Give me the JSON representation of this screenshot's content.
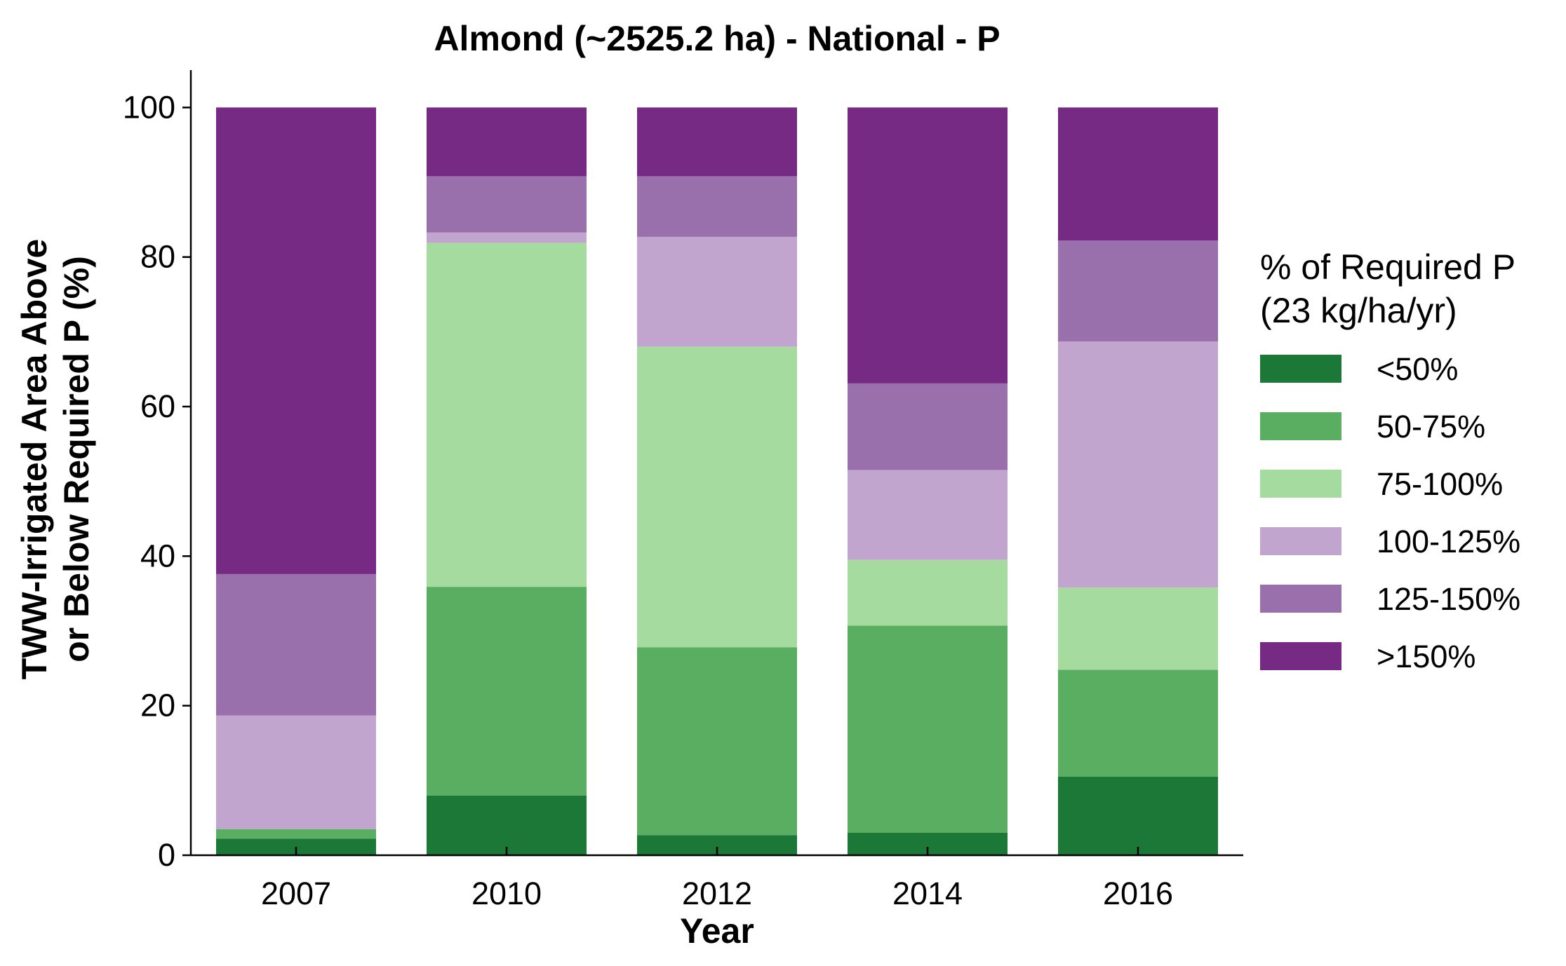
{
  "chart_data": {
    "type": "bar",
    "stacked": true,
    "title": "Almond (~2525.2 ha) - National - P",
    "xlabel": "Year",
    "ylabel_lines": [
      "TWW-Irrigated Area Above",
      "or Below Required P (%)"
    ],
    "ylim": [
      0,
      105
    ],
    "yticks": [
      0,
      20,
      40,
      60,
      80,
      100
    ],
    "categories": [
      "2007",
      "2010",
      "2012",
      "2014",
      "2016"
    ],
    "legend_title_lines": [
      "% of Required P",
      "(23 kg/ha/yr)"
    ],
    "legend_position": "right",
    "grid": false,
    "series": [
      {
        "name": "<50%",
        "color": "#1b7837",
        "values": [
          2.2,
          8.0,
          2.7,
          3.0,
          10.5
        ]
      },
      {
        "name": "50-75%",
        "color": "#5aae61",
        "values": [
          1.3,
          27.9,
          25.1,
          27.7,
          14.3
        ]
      },
      {
        "name": "75-100%",
        "color": "#a6dba0",
        "values": [
          0.0,
          46.0,
          40.2,
          8.8,
          11.0
        ]
      },
      {
        "name": "100-125%",
        "color": "#c2a5cf",
        "values": [
          15.2,
          1.4,
          14.7,
          12.0,
          32.9
        ]
      },
      {
        "name": "125-150%",
        "color": "#9970ab",
        "values": [
          18.9,
          7.5,
          8.1,
          11.6,
          13.5
        ]
      },
      {
        "name": ">150%",
        "color": "#762a83",
        "values": [
          62.4,
          9.2,
          9.2,
          36.9,
          17.8
        ]
      }
    ]
  }
}
